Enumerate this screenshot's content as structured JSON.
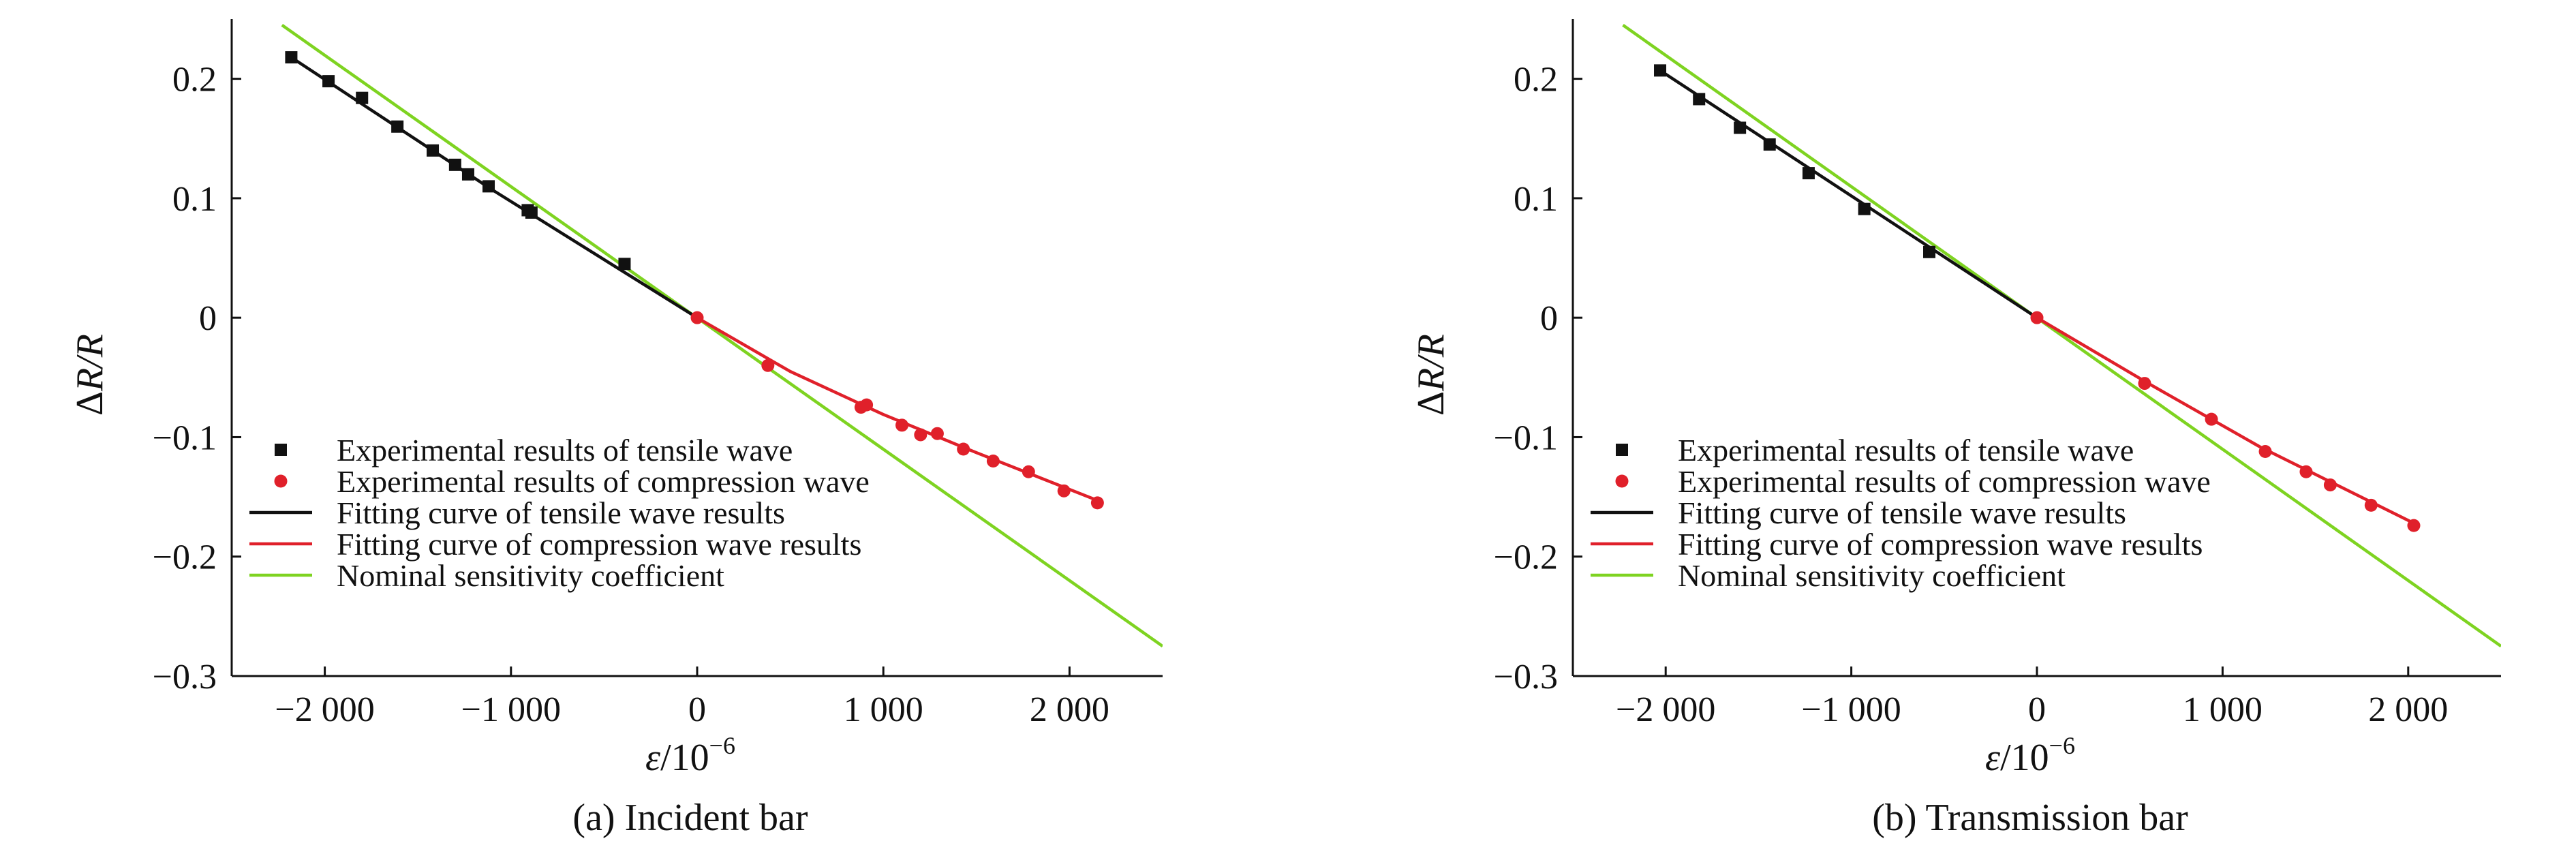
{
  "colors": {
    "tensile": "#111111",
    "compression": "#e0202a",
    "nominal": "#7ed321",
    "axis": "#111111"
  },
  "legend": {
    "items": [
      {
        "label": "Experimental results of tensile wave",
        "marker": "square",
        "color": "#111111"
      },
      {
        "label": "Experimental results of compression wave",
        "marker": "circle",
        "color": "#e0202a"
      },
      {
        "label": "Fitting curve of tensile wave results",
        "marker": "line",
        "color": "#111111"
      },
      {
        "label": "Fitting curve of compression wave results",
        "marker": "line",
        "color": "#e0202a"
      },
      {
        "label": "Nominal sensitivity coefficient",
        "marker": "line",
        "color": "#7ed321"
      }
    ]
  },
  "chart_data": [
    {
      "type": "scatter",
      "title": "(a) Incident bar",
      "xlabel_italic": "ε",
      "xlabel_rest": "/10",
      "xlabel_sup": "−6",
      "ylabel_delta": "Δ",
      "ylabel_italic": "R/R",
      "xlim": [
        -2500,
        2500
      ],
      "ylim": [
        -0.3,
        0.25
      ],
      "xticks": [
        -2000,
        -1000,
        0,
        1000,
        2000
      ],
      "xtick_labels": [
        "−2 000",
        "−1 000",
        "0",
        "1 000",
        "2 000"
      ],
      "yticks": [
        -0.3,
        -0.2,
        -0.1,
        0,
        0.1,
        0.2
      ],
      "ytick_labels": [
        "−0.3",
        "−0.2",
        "−0.1",
        "0",
        "0.1",
        "0.2"
      ],
      "grid": false,
      "legend_position": "bottom-left",
      "series": [
        {
          "name": "Experimental results of tensile wave",
          "kind": "points",
          "marker": "square",
          "x": [
            -2180,
            -1980,
            -1800,
            -1610,
            -1420,
            -1300,
            -1230,
            -1120,
            -910,
            -890,
            -390
          ],
          "y": [
            0.218,
            0.198,
            0.184,
            0.16,
            0.14,
            0.128,
            0.12,
            0.11,
            0.09,
            0.088,
            0.045
          ]
        },
        {
          "name": "Experimental results of compression wave",
          "kind": "points",
          "marker": "circle",
          "x": [
            0,
            380,
            880,
            910,
            1100,
            1200,
            1290,
            1430,
            1590,
            1780,
            1970,
            2150
          ],
          "y": [
            0.0,
            -0.04,
            -0.075,
            -0.073,
            -0.09,
            -0.098,
            -0.097,
            -0.11,
            -0.12,
            -0.129,
            -0.145,
            -0.155
          ]
        },
        {
          "name": "Fitting curve of tensile wave results",
          "kind": "line",
          "x": [
            -2200,
            -1100,
            0
          ],
          "y": [
            0.22,
            0.107,
            0.0
          ]
        },
        {
          "name": "Fitting curve of compression wave results",
          "kind": "line",
          "x": [
            0,
            500,
            1000,
            1500,
            2150
          ],
          "y": [
            0.0,
            -0.045,
            -0.081,
            -0.113,
            -0.153
          ]
        },
        {
          "name": "Nominal sensitivity coefficient",
          "kind": "line",
          "x": [
            -2230,
            2500
          ],
          "y": [
            0.245,
            -0.275
          ]
        }
      ]
    },
    {
      "type": "scatter",
      "title": "(b) Transmission bar",
      "xlabel_italic": "ε",
      "xlabel_rest": "/10",
      "xlabel_sup": "−6",
      "ylabel_delta": "Δ",
      "ylabel_italic": "R/R",
      "xlim": [
        -2500,
        2500
      ],
      "ylim": [
        -0.3,
        0.25
      ],
      "xticks": [
        -2000,
        -1000,
        0,
        1000,
        2000
      ],
      "xtick_labels": [
        "−2 000",
        "−1 000",
        "0",
        "1 000",
        "2 000"
      ],
      "yticks": [
        -0.3,
        -0.2,
        -0.1,
        0,
        0.1,
        0.2
      ],
      "ytick_labels": [
        "−0.3",
        "−0.2",
        "−0.1",
        "0",
        "0.1",
        "0.2"
      ],
      "grid": false,
      "legend_position": "bottom-left",
      "series": [
        {
          "name": "Experimental results of tensile wave",
          "kind": "points",
          "marker": "square",
          "x": [
            -2030,
            -1820,
            -1600,
            -1440,
            -1230,
            -930,
            -580
          ],
          "y": [
            0.207,
            0.183,
            0.159,
            0.145,
            0.121,
            0.091,
            0.055
          ]
        },
        {
          "name": "Experimental results of compression wave",
          "kind": "points",
          "marker": "circle",
          "x": [
            0,
            580,
            940,
            1230,
            1450,
            1580,
            1800,
            2030
          ],
          "y": [
            0.0,
            -0.055,
            -0.085,
            -0.112,
            -0.129,
            -0.14,
            -0.157,
            -0.174
          ]
        },
        {
          "name": "Fitting curve of tensile wave results",
          "kind": "line",
          "x": [
            -2040,
            0
          ],
          "y": [
            0.208,
            0.0
          ]
        },
        {
          "name": "Fitting curve of compression wave results",
          "kind": "line",
          "x": [
            0,
            600,
            1200,
            2030
          ],
          "y": [
            0.0,
            -0.055,
            -0.108,
            -0.172
          ]
        },
        {
          "name": "Nominal sensitivity coefficient",
          "kind": "line",
          "x": [
            -2230,
            2500
          ],
          "y": [
            0.245,
            -0.275
          ]
        }
      ]
    }
  ]
}
